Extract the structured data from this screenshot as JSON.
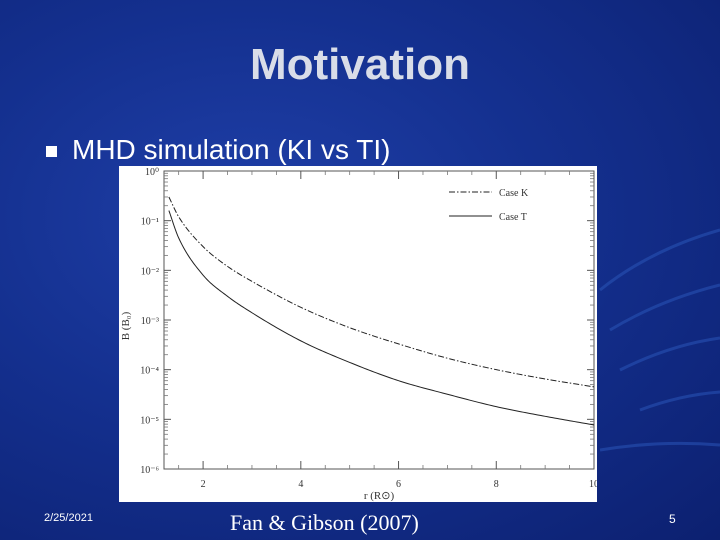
{
  "slide": {
    "title": "Motivation",
    "bullet_text": "MHD simulation (KI vs TI)",
    "footer_date": "2/25/2021",
    "footer_citation": "Fan & Gibson (2007)",
    "page_number": "5"
  },
  "theme": {
    "background": "#14308f",
    "title_color": "#d9dde8",
    "text_color": "#ffffff"
  },
  "chart_data": {
    "type": "line",
    "xlabel": "r (R⊙)",
    "ylabel": "B (B₀)",
    "xlim": [
      1.2,
      10
    ],
    "ylim": [
      1e-06,
      1
    ],
    "yscale": "log",
    "x_ticks": [
      "2",
      "4",
      "6",
      "8",
      "10"
    ],
    "y_ticks": [
      "10⁰",
      "10⁻¹",
      "10⁻²",
      "10⁻³",
      "10⁻⁴",
      "10⁻⁵",
      "10⁻⁶"
    ],
    "legend_position": "top-right",
    "series": [
      {
        "name": "Case K",
        "style": "dash-dot",
        "x": [
          1.3,
          1.5,
          2,
          2.5,
          3,
          4,
          5,
          6,
          7,
          8,
          9,
          10
        ],
        "values": [
          0.3,
          0.12,
          0.03,
          0.012,
          0.006,
          0.0018,
          0.0007,
          0.00033,
          0.00017,
          0.0001,
          6.5e-05,
          4.5e-05
        ]
      },
      {
        "name": "Case T",
        "style": "solid",
        "x": [
          1.3,
          1.5,
          2,
          2.5,
          3,
          4,
          5,
          6,
          7,
          8,
          9,
          10
        ],
        "values": [
          0.16,
          0.045,
          0.008,
          0.003,
          0.0014,
          0.00038,
          0.00014,
          6e-05,
          3.2e-05,
          1.8e-05,
          1.15e-05,
          7.7e-06
        ]
      }
    ]
  }
}
